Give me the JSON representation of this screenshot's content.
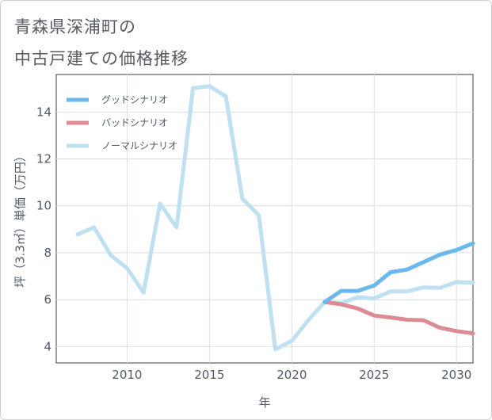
{
  "header": {
    "title_line1": "青森県深浦町の",
    "title_line2": "中古戸建ての価格推移"
  },
  "chart_data": {
    "type": "line",
    "xlabel": "年",
    "ylabel": "坪（3.3㎡）単価（万円）",
    "xlim": [
      2005.7,
      2031.0
    ],
    "ylim": [
      3.3,
      15.6
    ],
    "x_ticks": [
      2010,
      2015,
      2020,
      2025,
      2030
    ],
    "y_ticks": [
      4,
      6,
      8,
      10,
      12,
      14
    ],
    "grid": true,
    "legend_position": "top-left",
    "series": [
      {
        "name": "グッドシナリオ",
        "color": "#6ab8ec",
        "x": [
          2022,
          2023,
          2024,
          2025,
          2026,
          2027,
          2028,
          2029,
          2030,
          2031
        ],
        "y": [
          5.9,
          6.37,
          6.37,
          6.6,
          7.17,
          7.28,
          7.6,
          7.92,
          8.12,
          8.4
        ]
      },
      {
        "name": "バッドシナリオ",
        "color": "#dd8a92",
        "x": [
          2022,
          2023,
          2024,
          2025,
          2026,
          2027,
          2028,
          2029,
          2030,
          2031
        ],
        "y": [
          5.9,
          5.8,
          5.62,
          5.32,
          5.24,
          5.14,
          5.12,
          4.8,
          4.66,
          4.56
        ]
      },
      {
        "name": "ノーマルシナリオ",
        "color": "#bee0f0",
        "x": [
          2007,
          2008,
          2009,
          2010,
          2011,
          2012,
          2013,
          2014,
          2015,
          2016,
          2017,
          2018,
          2019,
          2020,
          2021,
          2022,
          2023,
          2024,
          2025,
          2026,
          2027,
          2028,
          2029,
          2030,
          2031
        ],
        "y": [
          8.78,
          9.08,
          7.9,
          7.34,
          6.3,
          10.1,
          9.08,
          15.02,
          15.1,
          14.66,
          10.3,
          9.6,
          3.88,
          4.24,
          5.12,
          5.9,
          5.85,
          6.1,
          6.05,
          6.35,
          6.35,
          6.52,
          6.5,
          6.75,
          6.72
        ]
      }
    ]
  }
}
